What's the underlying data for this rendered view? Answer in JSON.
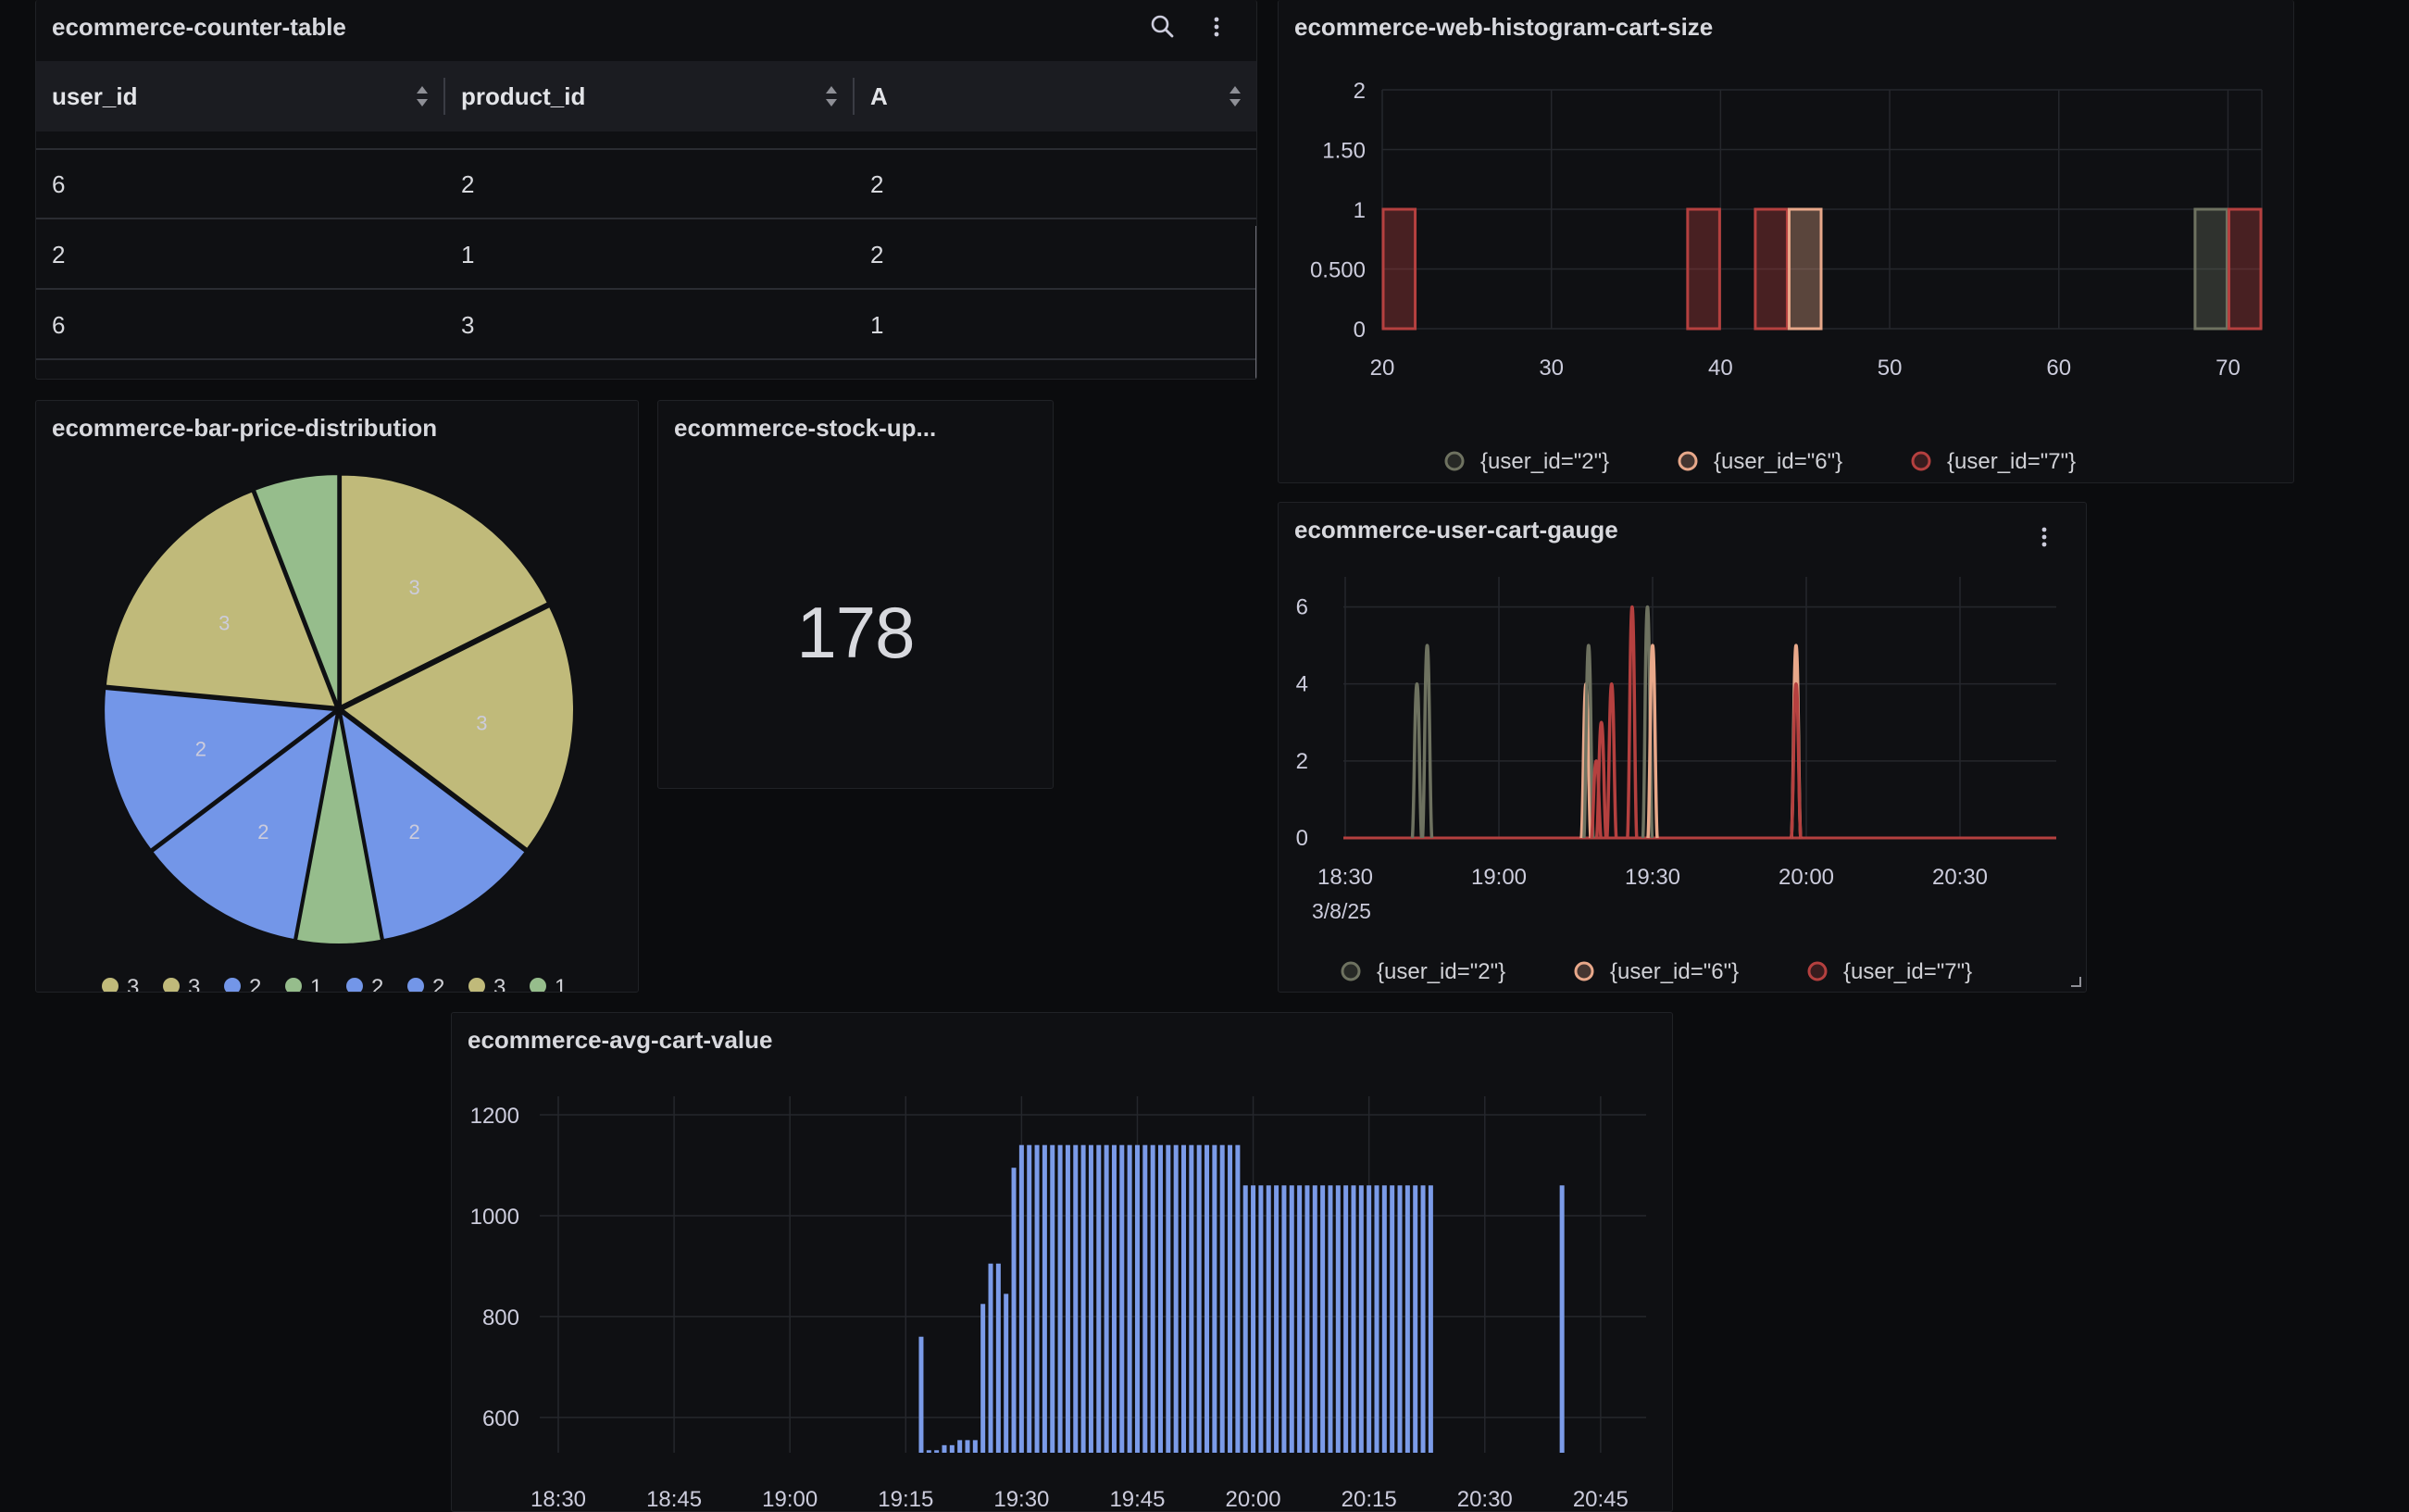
{
  "panels": {
    "counter_table": {
      "title": "ecommerce-counter-table",
      "columns": [
        "user_id",
        "product_id",
        "A"
      ],
      "rows": [
        [
          "6",
          "2",
          "2"
        ],
        [
          "2",
          "1",
          "2"
        ],
        [
          "6",
          "3",
          "1"
        ]
      ]
    },
    "histogram": {
      "title": "ecommerce-web-histogram-cart-size",
      "legend": [
        "{user_id=\"2\"}",
        "{user_id=\"6\"}",
        "{user_id=\"7\"}"
      ]
    },
    "pie": {
      "title": "ecommerce-bar-price-distribution",
      "legend": [
        "3",
        "3",
        "2",
        "1",
        "2",
        "2",
        "3",
        "1"
      ]
    },
    "stat": {
      "title": "ecommerce-stock-up...",
      "value": "178"
    },
    "gauge": {
      "title": "ecommerce-user-cart-gauge",
      "date_label": "3/8/25",
      "legend": [
        "{user_id=\"2\"}",
        "{user_id=\"6\"}",
        "{user_id=\"7\"}"
      ]
    },
    "avg_cart": {
      "title": "ecommerce-avg-cart-value"
    }
  },
  "colors": {
    "series_user2": "#6e7260",
    "series_user6": "#e8a88a",
    "series_user7": "#b5403f",
    "pie_khaki": "#c0ba7a",
    "pie_blue": "#7396e8",
    "pie_green": "#96bd8c",
    "bar_blue": "#7b9be8"
  },
  "chart_data": [
    {
      "type": "bar",
      "panel": "ecommerce-web-histogram-cart-size",
      "x_ticks": [
        "20",
        "30",
        "40",
        "50",
        "60",
        "70"
      ],
      "y_ticks": [
        "0",
        "0.500",
        "1",
        "1.50",
        "2"
      ],
      "xlim": [
        20,
        72
      ],
      "ylim": [
        0,
        2
      ],
      "legend_position": "bottom",
      "bins": [
        {
          "series": "{user_id=\"7\"}",
          "x0": 20,
          "x1": 22,
          "count": 1
        },
        {
          "series": "{user_id=\"7\"}",
          "x0": 38,
          "x1": 40,
          "count": 1
        },
        {
          "series": "{user_id=\"7\"}",
          "x0": 42,
          "x1": 44,
          "count": 1
        },
        {
          "series": "{user_id=\"6\"}",
          "x0": 44,
          "x1": 46,
          "count": 1
        },
        {
          "series": "{user_id=\"2\"}",
          "x0": 68,
          "x1": 70,
          "count": 1
        },
        {
          "series": "{user_id=\"7\"}",
          "x0": 70,
          "x1": 72,
          "count": 1
        }
      ]
    },
    {
      "type": "pie",
      "panel": "ecommerce-bar-price-distribution",
      "legend_position": "bottom",
      "slices": [
        {
          "label": "3",
          "value": 3,
          "color": "#c0ba7a"
        },
        {
          "label": "3",
          "value": 3,
          "color": "#c0ba7a"
        },
        {
          "label": "2",
          "value": 2,
          "color": "#7396e8"
        },
        {
          "label": "1",
          "value": 1,
          "color": "#96bd8c"
        },
        {
          "label": "2",
          "value": 2,
          "color": "#7396e8"
        },
        {
          "label": "2",
          "value": 2,
          "color": "#7396e8"
        },
        {
          "label": "3",
          "value": 3,
          "color": "#c0ba7a"
        },
        {
          "label": "1",
          "value": 1,
          "color": "#96bd8c"
        }
      ]
    },
    {
      "type": "line",
      "panel": "ecommerce-user-cart-gauge",
      "x_ticks": [
        "18:30",
        "19:00",
        "19:30",
        "20:00",
        "20:30"
      ],
      "y_ticks": [
        "0",
        "2",
        "4",
        "6"
      ],
      "ylim": [
        0,
        6.3
      ],
      "legend_position": "bottom",
      "spikes": [
        {
          "series": "{user_id=\"2\"}",
          "time": "18:44",
          "value": 4
        },
        {
          "series": "{user_id=\"2\"}",
          "time": "18:46",
          "value": 5
        },
        {
          "series": "{user_id=\"6\"}",
          "time": "19:17",
          "value": 4
        },
        {
          "series": "{user_id=\"2\"}",
          "time": "19:17.5",
          "value": 5
        },
        {
          "series": "{user_id=\"7\"}",
          "time": "19:19",
          "value": 2
        },
        {
          "series": "{user_id=\"7\"}",
          "time": "19:20",
          "value": 3
        },
        {
          "series": "{user_id=\"7\"}",
          "time": "19:22",
          "value": 4
        },
        {
          "series": "{user_id=\"7\"}",
          "time": "19:26",
          "value": 6
        },
        {
          "series": "{user_id=\"2\"}",
          "time": "19:29",
          "value": 6
        },
        {
          "series": "{user_id=\"6\"}",
          "time": "19:30",
          "value": 5
        },
        {
          "series": "{user_id=\"6\"}",
          "time": "19:58",
          "value": 5
        },
        {
          "series": "{user_id=\"7\"}",
          "time": "19:58",
          "value": 4
        }
      ]
    },
    {
      "type": "bar",
      "panel": "ecommerce-avg-cart-value",
      "x_ticks": [
        "18:30",
        "18:45",
        "19:00",
        "19:15",
        "19:30",
        "19:45",
        "20:00",
        "20:15",
        "20:30",
        "20:45"
      ],
      "y_ticks": [
        "600",
        "800",
        "1000",
        "1200"
      ],
      "ylim": [
        530,
        1200
      ],
      "bar_color": "#7b9be8",
      "series": [
        {
          "time": "19:17",
          "value": 760
        },
        {
          "time": "19:18",
          "value": 535
        },
        {
          "time": "19:19",
          "value": 535
        },
        {
          "time": "19:20",
          "value": 545
        },
        {
          "time": "19:21",
          "value": 545
        },
        {
          "time": "19:22",
          "value": 555
        },
        {
          "time": "19:23",
          "value": 555
        },
        {
          "time": "19:24",
          "value": 555
        },
        {
          "time": "19:25",
          "value": 825
        },
        {
          "time": "19:26",
          "value": 905
        },
        {
          "time": "19:27",
          "value": 905
        },
        {
          "time": "19:28",
          "value": 845
        },
        {
          "time": "19:29",
          "value": 1095
        },
        {
          "time": "19:30-19:58",
          "value": 1140
        },
        {
          "time": "19:59-20:23",
          "value": 1060
        },
        {
          "time": "20:40",
          "value": 1060
        }
      ]
    }
  ]
}
